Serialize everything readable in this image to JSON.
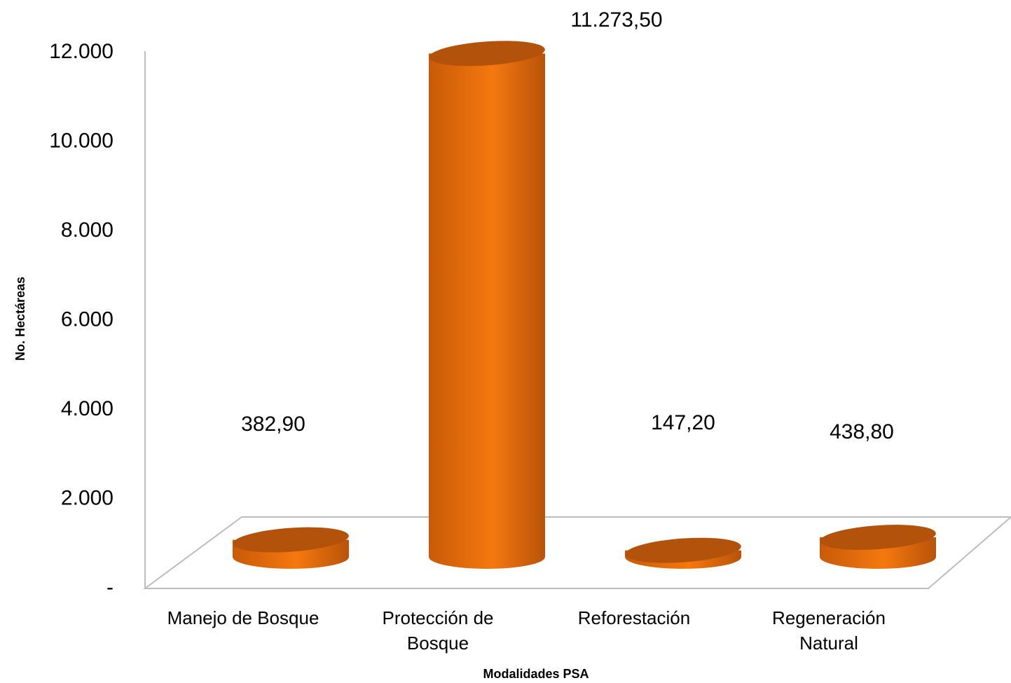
{
  "chart_data": {
    "type": "cylinder",
    "x_label": "Modalidades PSA",
    "y_label": "No. Hectáreas",
    "categories": [
      "Manejo de Bosque",
      "Protección de Bosque",
      "Reforestación",
      "Regeneración Natural"
    ],
    "values": [
      382.9,
      11273.5,
      147.2,
      438.8
    ],
    "value_labels": [
      "382,90",
      "11.273,50",
      "147,20",
      "438,80"
    ],
    "color": "#f07415",
    "ylim": [
      0,
      12000
    ],
    "yticks": [
      {
        "value": 0,
        "label": "-"
      },
      {
        "value": 2000,
        "label": "2.000"
      },
      {
        "value": 4000,
        "label": "4.000"
      },
      {
        "value": 6000,
        "label": "6.000"
      },
      {
        "value": 8000,
        "label": "8.000"
      },
      {
        "value": 10000,
        "label": "10.000"
      },
      {
        "value": 12000,
        "label": "12.000"
      }
    ]
  }
}
